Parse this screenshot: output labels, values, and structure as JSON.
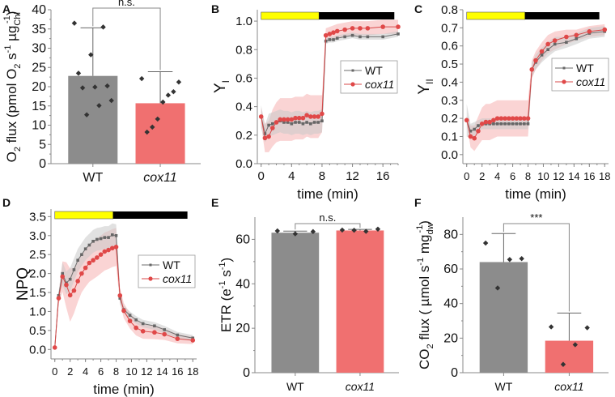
{
  "figure": {
    "colors": {
      "wt": "#8c8c8c",
      "cox11": "#f07070",
      "wt_line": "#6e6e6e",
      "cox11_line": "#d84848",
      "wt_band": "#c8c8c8",
      "cox11_band": "#f6b8b8",
      "points": "#333333",
      "light": "#ffff00",
      "dark": "#000000",
      "axis": "#888888"
    }
  },
  "chart_data": [
    {
      "id": "A",
      "panel_label": "A",
      "type": "bar",
      "categories": [
        "WT",
        "cox11"
      ],
      "category_italic": [
        false,
        true
      ],
      "values": [
        22.8,
        15.7
      ],
      "errors": [
        12.5,
        8.2
      ],
      "points": [
        [
          36.5,
          35.5,
          28.3,
          23.5,
          20.2,
          19.9,
          19.7,
          16.4,
          15.1,
          12.7
        ],
        [
          22.1,
          21.2,
          18.7,
          17.8,
          16.0,
          11.6,
          9.5,
          8.2
        ]
      ],
      "ylabel": "O2 flux (pmol O2 s-1 µgChl-1)",
      "ylabel_parts": {
        "pre": "O",
        "sub1": "2",
        "mid": " flux (pmol O",
        "sub2": "2",
        "mid2": " s",
        "sup1": "-1",
        "mid3": " µg",
        "sub3": "Chl",
        "sup2": "-1",
        "post": ")"
      },
      "ylim": [
        0,
        40
      ],
      "yticks": [
        "0",
        "5",
        "10",
        "15",
        "20",
        "25",
        "30",
        "35",
        "40"
      ],
      "significance": "n.s."
    },
    {
      "id": "B",
      "panel_label": "B",
      "type": "line",
      "xlabel": "time (min)",
      "ylabel": "Y",
      "ylabel_sub": "I",
      "xlim": [
        -0.5,
        18
      ],
      "ylim": [
        0,
        1.08
      ],
      "xticks": [
        "0",
        "4",
        "8",
        "12",
        "16"
      ],
      "xtick_values": [
        0,
        4,
        8,
        12,
        16
      ],
      "yticks": [
        "0.0",
        "0.2",
        "0.4",
        "0.6",
        "0.8",
        "1.0"
      ],
      "ytick_values": [
        0,
        0.2,
        0.4,
        0.6,
        0.8,
        1.0
      ],
      "light_bar": {
        "light_from": 0,
        "light_to": 7.6,
        "dark_to": 17.5
      },
      "legend": [
        "WT",
        "cox11"
      ],
      "series": [
        {
          "name": "WT",
          "x": [
            0,
            0.5,
            1,
            1.5,
            2,
            2.5,
            3,
            3.5,
            4,
            4.5,
            5,
            5.5,
            6,
            6.5,
            7,
            7.5,
            8,
            8.5,
            9,
            9.5,
            10,
            11,
            12,
            13,
            14,
            16,
            18
          ],
          "y": [
            0.33,
            0.21,
            0.27,
            0.28,
            0.29,
            0.3,
            0.29,
            0.29,
            0.28,
            0.29,
            0.29,
            0.28,
            0.29,
            0.28,
            0.29,
            0.29,
            0.3,
            0.86,
            0.87,
            0.87,
            0.88,
            0.89,
            0.9,
            0.89,
            0.89,
            0.89,
            0.91
          ],
          "sd": [
            0.08,
            0.06,
            0.08,
            0.08,
            0.08,
            0.08,
            0.08,
            0.08,
            0.08,
            0.08,
            0.08,
            0.08,
            0.08,
            0.08,
            0.08,
            0.08,
            0.08,
            0.02,
            0.02,
            0.02,
            0.02,
            0.02,
            0.02,
            0.02,
            0.02,
            0.02,
            0.02
          ]
        },
        {
          "name": "cox11",
          "x": [
            0,
            0.5,
            1,
            1.5,
            2,
            2.5,
            3,
            3.5,
            4,
            4.5,
            5,
            5.5,
            6,
            6.5,
            7,
            7.5,
            8,
            8.5,
            9,
            9.5,
            10,
            11,
            12,
            13,
            14,
            16,
            18
          ],
          "y": [
            0.33,
            0.18,
            0.19,
            0.25,
            0.29,
            0.31,
            0.31,
            0.31,
            0.31,
            0.32,
            0.32,
            0.32,
            0.34,
            0.33,
            0.33,
            0.33,
            0.35,
            0.9,
            0.91,
            0.92,
            0.93,
            0.94,
            0.95,
            0.95,
            0.95,
            0.96,
            0.96
          ],
          "sd": [
            0.06,
            0.1,
            0.11,
            0.13,
            0.14,
            0.15,
            0.15,
            0.15,
            0.15,
            0.15,
            0.15,
            0.15,
            0.15,
            0.15,
            0.15,
            0.15,
            0.13,
            0.05,
            0.05,
            0.05,
            0.05,
            0.05,
            0.05,
            0.05,
            0.05,
            0.05,
            0.05
          ]
        }
      ]
    },
    {
      "id": "C",
      "panel_label": "C",
      "type": "line",
      "xlabel": "time (min)",
      "ylabel": "Y",
      "ylabel_sub": "II",
      "xlim": [
        -0.5,
        18.5
      ],
      "ylim": [
        -0.05,
        0.8
      ],
      "xticks": [
        "0",
        "2",
        "4",
        "6",
        "8",
        "10",
        "12",
        "14",
        "16",
        "18"
      ],
      "xtick_values": [
        0,
        2,
        4,
        6,
        8,
        10,
        12,
        14,
        16,
        18
      ],
      "yticks": [
        "0.0",
        "0.1",
        "0.2",
        "0.3",
        "0.4",
        "0.5",
        "0.6",
        "0.7",
        "0.8"
      ],
      "ytick_values": [
        0,
        0.1,
        0.2,
        0.3,
        0.4,
        0.5,
        0.6,
        0.7,
        0.8
      ],
      "light_bar": {
        "light_from": 0,
        "light_to": 7.6,
        "dark_to": 17.3
      },
      "legend": [
        "WT",
        "cox11"
      ],
      "series": [
        {
          "name": "WT",
          "x": [
            0,
            0.5,
            1,
            1.5,
            2,
            2.5,
            3,
            3.5,
            4,
            4.5,
            5,
            5.5,
            6,
            6.5,
            7,
            7.5,
            8,
            8.5,
            9,
            9.8,
            10.6,
            11.5,
            13,
            14.3,
            16,
            18
          ],
          "y": [
            0.19,
            0.13,
            0.14,
            0.16,
            0.17,
            0.17,
            0.17,
            0.17,
            0.17,
            0.17,
            0.17,
            0.17,
            0.17,
            0.17,
            0.17,
            0.17,
            0.17,
            0.47,
            0.51,
            0.55,
            0.58,
            0.61,
            0.62,
            0.64,
            0.67,
            0.68
          ],
          "sd": [
            0.09,
            0.04,
            0.04,
            0.03,
            0.03,
            0.03,
            0.03,
            0.03,
            0.03,
            0.03,
            0.03,
            0.03,
            0.03,
            0.03,
            0.03,
            0.03,
            0.03,
            0.04,
            0.04,
            0.04,
            0.04,
            0.04,
            0.03,
            0.03,
            0.03,
            0.03
          ]
        },
        {
          "name": "cox11",
          "x": [
            0,
            0.5,
            1,
            1.5,
            2,
            2.5,
            3,
            3.5,
            4,
            4.5,
            5,
            5.5,
            6,
            6.5,
            7,
            7.5,
            8,
            8.5,
            9,
            9.8,
            10.6,
            11.5,
            13,
            14.3,
            16,
            18
          ],
          "y": [
            0.19,
            0.1,
            0.09,
            0.13,
            0.17,
            0.18,
            0.18,
            0.19,
            0.2,
            0.2,
            0.2,
            0.2,
            0.2,
            0.2,
            0.2,
            0.2,
            0.2,
            0.47,
            0.52,
            0.57,
            0.61,
            0.63,
            0.65,
            0.66,
            0.68,
            0.69
          ],
          "sd": [
            0.02,
            0.06,
            0.07,
            0.08,
            0.09,
            0.1,
            0.1,
            0.1,
            0.1,
            0.1,
            0.1,
            0.1,
            0.1,
            0.1,
            0.1,
            0.1,
            0.1,
            0.05,
            0.05,
            0.05,
            0.05,
            0.05,
            0.04,
            0.03,
            0.03,
            0.03
          ]
        }
      ]
    },
    {
      "id": "D",
      "panel_label": "D",
      "type": "line",
      "xlabel": "time (min)",
      "ylabel": "NPQ",
      "xlim": [
        -0.5,
        18.5
      ],
      "ylim": [
        -0.25,
        3.7
      ],
      "xticks": [
        "0",
        "2",
        "4",
        "6",
        "8",
        "10",
        "12",
        "14",
        "16",
        "18"
      ],
      "xtick_values": [
        0,
        2,
        4,
        6,
        8,
        10,
        12,
        14,
        16,
        18
      ],
      "yticks": [
        "0.0",
        "0.5",
        "1.0",
        "1.5",
        "2.0",
        "2.5",
        "3.0",
        "3.5"
      ],
      "ytick_values": [
        0,
        0.5,
        1,
        1.5,
        2,
        2.5,
        3,
        3.5
      ],
      "light_bar": {
        "light_from": 0,
        "light_to": 7.6,
        "dark_to": 17.3
      },
      "legend": [
        "WT",
        "cox11"
      ],
      "series": [
        {
          "name": "WT",
          "x": [
            0,
            0.5,
            1,
            1.5,
            2,
            2.5,
            3,
            3.5,
            4,
            4.5,
            5,
            5.5,
            6,
            6.5,
            7,
            7.5,
            8,
            8.5,
            9,
            9.8,
            10.6,
            11.5,
            13,
            14.3,
            16,
            18
          ],
          "y": [
            0.05,
            1.42,
            2.0,
            1.75,
            1.85,
            2.1,
            2.35,
            2.5,
            2.65,
            2.75,
            2.85,
            2.9,
            2.92,
            2.95,
            2.95,
            3.02,
            3.0,
            1.35,
            1.05,
            0.9,
            0.78,
            0.68,
            0.62,
            0.52,
            0.38,
            0.3
          ],
          "sd": [
            0.02,
            0.1,
            0.3,
            0.3,
            0.3,
            0.3,
            0.3,
            0.3,
            0.3,
            0.3,
            0.3,
            0.3,
            0.3,
            0.3,
            0.3,
            0.3,
            0.3,
            0.15,
            0.1,
            0.1,
            0.1,
            0.1,
            0.1,
            0.1,
            0.08,
            0.08
          ]
        },
        {
          "name": "cox11",
          "x": [
            0,
            0.5,
            1,
            1.5,
            2,
            2.5,
            3,
            3.5,
            4,
            4.5,
            5,
            5.5,
            6,
            6.5,
            7,
            7.5,
            8,
            8.5,
            9,
            9.8,
            10.6,
            11.5,
            13,
            14.3,
            16,
            18
          ],
          "y": [
            0.05,
            1.35,
            1.92,
            1.7,
            1.43,
            1.55,
            1.8,
            2.0,
            2.15,
            2.28,
            2.35,
            2.42,
            2.5,
            2.58,
            2.62,
            2.67,
            2.7,
            1.42,
            1.02,
            0.75,
            0.57,
            0.48,
            0.45,
            0.4,
            0.28,
            0.24
          ],
          "sd": [
            0.02,
            0.15,
            0.4,
            0.6,
            0.7,
            0.6,
            0.55,
            0.5,
            0.5,
            0.5,
            0.5,
            0.5,
            0.5,
            0.5,
            0.5,
            0.5,
            0.5,
            0.2,
            0.2,
            0.2,
            0.2,
            0.2,
            0.18,
            0.15,
            0.12,
            0.1
          ]
        }
      ]
    },
    {
      "id": "E",
      "panel_label": "E",
      "type": "bar",
      "categories": [
        "WT",
        "cox11"
      ],
      "category_italic": [
        false,
        true
      ],
      "values": [
        63.0,
        64.0
      ],
      "errors": [
        0.7,
        0.5
      ],
      "points": [
        [
          63.8,
          62.5,
          63.5
        ],
        [
          64.2,
          64.6,
          63.6,
          64.1
        ]
      ],
      "ylabel": "ETR (e-1 s-1)",
      "ylabel_parts": {
        "pre": "ETR (e",
        "sup1": "-1",
        "mid": " s",
        "sup2": "-1",
        "post": ")"
      },
      "ylim": [
        0,
        70
      ],
      "yticks": [
        "0",
        "20",
        "40",
        "60"
      ],
      "ytick_values": [
        0,
        20,
        40,
        60
      ],
      "significance": "n.s."
    },
    {
      "id": "F",
      "panel_label": "F",
      "type": "bar",
      "categories": [
        "WT",
        "cox11"
      ],
      "category_italic": [
        false,
        true
      ],
      "values": [
        64.0,
        18.5
      ],
      "errors": [
        16.5,
        16.0
      ],
      "points": [
        [
          75.0,
          66.0,
          65.5,
          49.0
        ],
        [
          26.5,
          26.0,
          16.2,
          4.8
        ]
      ],
      "ylabel": "CO2 flux (µmol s-1 mgdw-1)",
      "ylabel_parts": {
        "pre": "CO",
        "sub1": "2",
        "mid": " flux ( µmol s",
        "sup1": "-1",
        "mid2": " mg",
        "sub2": "dw",
        "sup2": "-1",
        "post": ")"
      },
      "ylim": [
        0,
        90
      ],
      "yticks": [
        "0",
        "20",
        "40",
        "60",
        "80"
      ],
      "ytick_values": [
        0,
        20,
        40,
        60,
        80
      ],
      "significance": "***"
    }
  ]
}
